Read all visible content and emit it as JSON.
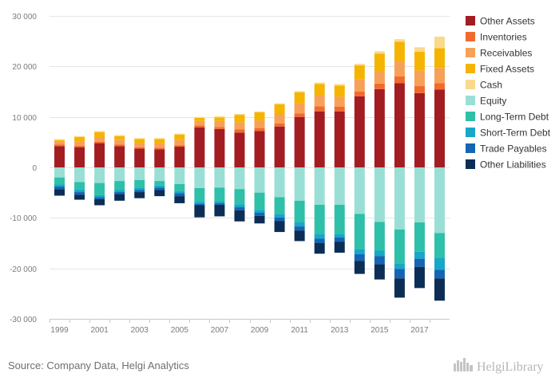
{
  "source": "Source: Company Data, Helgi Analytics",
  "logo": {
    "text": "HelgiLibrary",
    "icon": "city-skyline-icon"
  },
  "chart_data": {
    "type": "bar",
    "stacked": true,
    "diverging": true,
    "categories": [
      "1999",
      "2000",
      "2001",
      "2002",
      "2003",
      "2004",
      "2005",
      "2006",
      "2007",
      "2008",
      "2009",
      "2010",
      "2011",
      "2012",
      "2013",
      "2014",
      "2015",
      "2016",
      "2017",
      "2018"
    ],
    "x_tick_labels": [
      "1999",
      "2001",
      "2003",
      "2005",
      "2007",
      "2009",
      "2011",
      "2013",
      "2015",
      "2017"
    ],
    "ylim": [
      -30000,
      30000
    ],
    "y_ticks": [
      -30000,
      -20000,
      -10000,
      0,
      10000,
      20000,
      30000
    ],
    "y_tick_labels": [
      "-30 000",
      "-20 000",
      "-10 000",
      "0",
      "10 000",
      "20 000",
      "30 000"
    ],
    "grid": true,
    "legend_position": "right",
    "series": [
      {
        "name": "Other Assets",
        "color": "#a31c22",
        "side": "positive",
        "values": [
          4200,
          4000,
          4800,
          4200,
          3700,
          3600,
          4100,
          7900,
          7600,
          6900,
          7200,
          8100,
          10000,
          11100,
          11100,
          14100,
          15500,
          16700,
          14700,
          15400
        ]
      },
      {
        "name": "Inventories",
        "color": "#f26a2e",
        "side": "positive",
        "values": [
          300,
          300,
          300,
          300,
          300,
          300,
          300,
          400,
          400,
          600,
          600,
          600,
          700,
          1000,
          900,
          900,
          1100,
          1300,
          1400,
          1300
        ]
      },
      {
        "name": "Receivables",
        "color": "#f7a058",
        "side": "positive",
        "values": [
          600,
          800,
          900,
          900,
          800,
          900,
          1000,
          900,
          1200,
          1400,
          1500,
          1800,
          2000,
          2200,
          2000,
          2500,
          2500,
          3000,
          3100,
          3000
        ]
      },
      {
        "name": "Fixed Assets",
        "color": "#f5b400",
        "side": "positive",
        "values": [
          300,
          900,
          1000,
          800,
          800,
          800,
          1100,
          600,
          700,
          1500,
          1600,
          2000,
          2200,
          2200,
          2200,
          2700,
          3400,
          3900,
          3700,
          3900
        ]
      },
      {
        "name": "Cash",
        "color": "#fbd98a",
        "side": "positive",
        "values": [
          200,
          200,
          200,
          200,
          200,
          200,
          200,
          200,
          200,
          200,
          200,
          200,
          200,
          300,
          300,
          300,
          500,
          500,
          900,
          2300
        ]
      },
      {
        "name": "Equity",
        "color": "#99dfd6",
        "side": "negative",
        "values": [
          2000,
          2900,
          3100,
          2700,
          2500,
          2700,
          3300,
          4100,
          4000,
          4300,
          5000,
          5900,
          6600,
          7400,
          7400,
          9200,
          10800,
          12300,
          10900,
          13000
        ]
      },
      {
        "name": "Long-Term Debt",
        "color": "#2ec0a8",
        "side": "negative",
        "values": [
          1400,
          1500,
          2400,
          1800,
          1600,
          900,
          1400,
          2700,
          2700,
          3000,
          3400,
          3300,
          4300,
          5800,
          5800,
          7000,
          5700,
          6800,
          5800,
          5000
        ]
      },
      {
        "name": "Short-Term Debt",
        "color": "#16a7c9",
        "side": "negative",
        "values": [
          400,
          500,
          400,
          400,
          400,
          400,
          400,
          400,
          400,
          600,
          600,
          700,
          800,
          900,
          700,
          1000,
          1100,
          1000,
          1400,
          2300
        ]
      },
      {
        "name": "Trade Payables",
        "color": "#1565b4",
        "side": "negative",
        "values": [
          500,
          500,
          400,
          400,
          400,
          500,
          600,
          300,
          300,
          600,
          600,
          700,
          800,
          900,
          800,
          1300,
          1600,
          1900,
          1600,
          1700
        ]
      },
      {
        "name": "Other Liabilities",
        "color": "#0c2d55",
        "side": "negative",
        "values": [
          1300,
          1000,
          1200,
          1300,
          1200,
          1200,
          1400,
          2400,
          2300,
          2200,
          1500,
          2200,
          2100,
          2100,
          2200,
          2600,
          3000,
          3800,
          4200,
          4400
        ]
      }
    ]
  }
}
